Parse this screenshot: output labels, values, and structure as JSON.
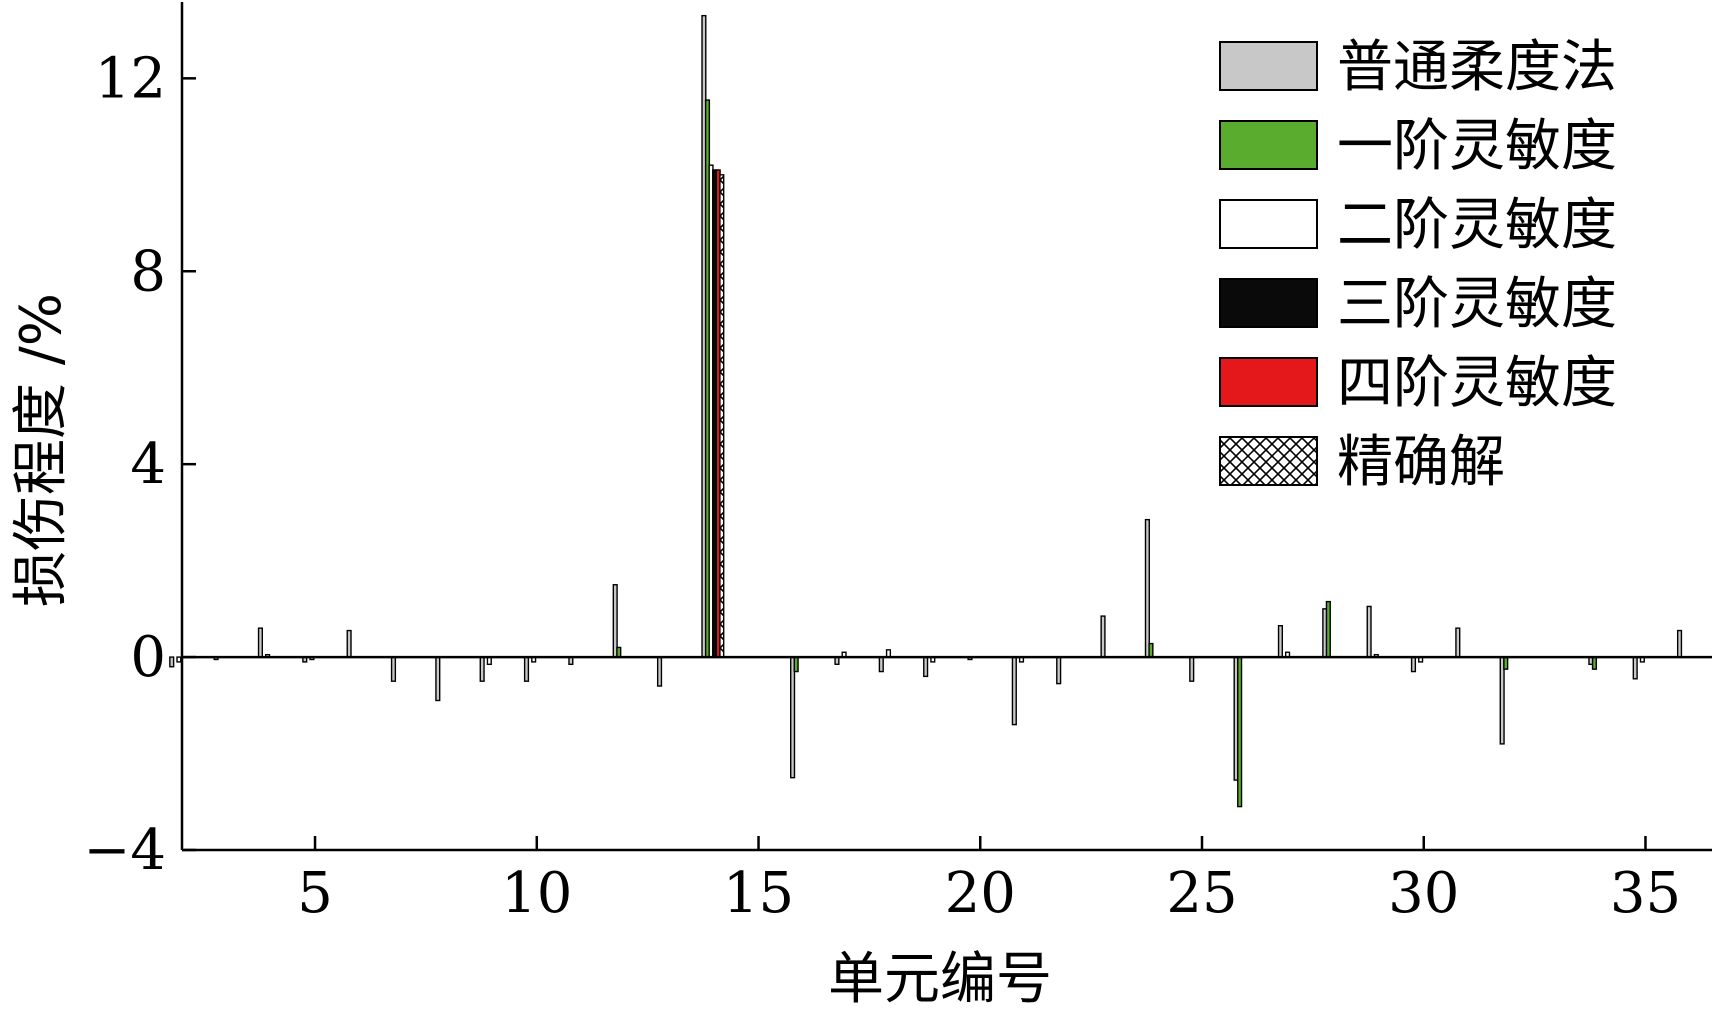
{
  "chart_data": {
    "type": "bar",
    "xlabel": "单元编号",
    "ylabel": "损伤程度 /%",
    "xlim": [
      2,
      36.5
    ],
    "ylim": [
      -4,
      13.5
    ],
    "xticks": [
      5,
      10,
      15,
      20,
      25,
      30,
      35
    ],
    "yticks": [
      -4,
      0,
      4,
      8,
      12
    ],
    "ytick_labels": [
      "−4",
      "0",
      "4",
      "8",
      "12"
    ],
    "legend_position": "top-right",
    "colors": {
      "普通柔度法": "#c8c8c8",
      "一阶灵敏度": "#5aac2e",
      "二阶灵敏度": "#ffffff",
      "三阶灵敏度": "#0a0a0a",
      "四阶灵敏度": "#e4171b",
      "精确解": "#ffffff"
    },
    "series": [
      {
        "name": "普通柔度法",
        "pattern": "solid",
        "points": [
          {
            "x": 2,
            "y": -0.2
          },
          {
            "x": 3,
            "y": -0.05
          },
          {
            "x": 4,
            "y": 0.6
          },
          {
            "x": 5,
            "y": -0.1
          },
          {
            "x": 6,
            "y": 0.55
          },
          {
            "x": 7,
            "y": -0.5
          },
          {
            "x": 8,
            "y": -0.9
          },
          {
            "x": 9,
            "y": -0.5
          },
          {
            "x": 10,
            "y": -0.5
          },
          {
            "x": 11,
            "y": -0.15
          },
          {
            "x": 12,
            "y": 1.5
          },
          {
            "x": 13,
            "y": -0.6
          },
          {
            "x": 14,
            "y": 13.3
          },
          {
            "x": 16,
            "y": -2.5
          },
          {
            "x": 17,
            "y": -0.15
          },
          {
            "x": 18,
            "y": -0.3
          },
          {
            "x": 19,
            "y": -0.4
          },
          {
            "x": 20,
            "y": -0.05
          },
          {
            "x": 21,
            "y": -1.4
          },
          {
            "x": 22,
            "y": -0.55
          },
          {
            "x": 23,
            "y": 0.85
          },
          {
            "x": 24,
            "y": 2.85
          },
          {
            "x": 25,
            "y": -0.5
          },
          {
            "x": 26,
            "y": -2.55
          },
          {
            "x": 27,
            "y": 0.65
          },
          {
            "x": 28,
            "y": 1.0
          },
          {
            "x": 29,
            "y": 1.05
          },
          {
            "x": 30,
            "y": -0.3
          },
          {
            "x": 31,
            "y": 0.6
          },
          {
            "x": 32,
            "y": -1.8
          },
          {
            "x": 34,
            "y": -0.15
          },
          {
            "x": 35,
            "y": -0.45
          },
          {
            "x": 36,
            "y": 0.55
          }
        ]
      },
      {
        "name": "一阶灵敏度",
        "pattern": "solid",
        "points": [
          {
            "x": 12,
            "y": 0.2
          },
          {
            "x": 14,
            "y": 11.55
          },
          {
            "x": 16,
            "y": -0.3
          },
          {
            "x": 24,
            "y": 0.28
          },
          {
            "x": 26,
            "y": -3.1
          },
          {
            "x": 28,
            "y": 1.15
          },
          {
            "x": 32,
            "y": -0.25
          },
          {
            "x": 34,
            "y": -0.25
          }
        ]
      },
      {
        "name": "二阶灵敏度",
        "pattern": "solid",
        "points": [
          {
            "x": 2,
            "y": -0.1
          },
          {
            "x": 4,
            "y": 0.05
          },
          {
            "x": 5,
            "y": -0.05
          },
          {
            "x": 9,
            "y": -0.15
          },
          {
            "x": 10,
            "y": -0.1
          },
          {
            "x": 14,
            "y": 10.2
          },
          {
            "x": 17,
            "y": 0.1
          },
          {
            "x": 18,
            "y": 0.15
          },
          {
            "x": 19,
            "y": -0.1
          },
          {
            "x": 21,
            "y": -0.1
          },
          {
            "x": 27,
            "y": 0.1
          },
          {
            "x": 29,
            "y": 0.05
          },
          {
            "x": 30,
            "y": -0.1
          },
          {
            "x": 35,
            "y": -0.1
          }
        ]
      },
      {
        "name": "三阶灵敏度",
        "pattern": "solid",
        "points": [
          {
            "x": 14,
            "y": 10.1
          }
        ]
      },
      {
        "name": "四阶灵敏度",
        "pattern": "solid",
        "points": [
          {
            "x": 14,
            "y": 10.1
          }
        ]
      },
      {
        "name": "精确解",
        "pattern": "crosshatch",
        "points": [
          {
            "x": 14,
            "y": 10.0
          }
        ]
      }
    ]
  }
}
